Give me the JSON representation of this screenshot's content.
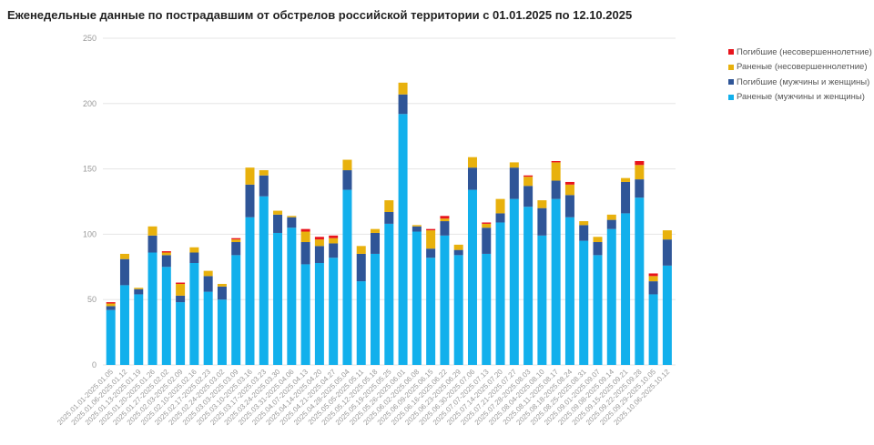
{
  "chart_data": {
    "type": "bar",
    "stacked": true,
    "title": "Еженедельные данные по пострадавшим от обстрелов российской территории с 01.01.2025 по 12.10.2025",
    "xlabel": "",
    "ylabel": "",
    "ylim": [
      0,
      250
    ],
    "yticks": [
      0,
      50,
      100,
      150,
      200,
      250
    ],
    "grid": true,
    "legend_position": "right",
    "categories": [
      "2025.01.01-2025.01.05",
      "2025.01.06-2025.01.12",
      "2025.01.13-2025.01.19",
      "2025.01.20-2025.01.26",
      "2025.01.27-2025.02.02",
      "2025.02.03-2025.02.09",
      "2025.02.10-2025.02.16",
      "2025.02.17-2025.02.23",
      "2025.02.24-2025.03.02",
      "2025.03.03-2025.03.09",
      "2025.03.10-2025.03.16",
      "2025.03.17-2025.03.23",
      "2025.03.24-2025.03.30",
      "2025.03.31-2025.04.06",
      "2025.04.07-2025.04.13",
      "2025.04.14-2025.04.20",
      "2025.04.21-2025.04.27",
      "2025.04.28-2025.05.04",
      "2025.05.05-2025.05.11",
      "2025.05.12-2025.05.18",
      "2025.05.19-2025.05.25",
      "2025.05.26-2025.06.01",
      "2025.06.02-2025.06.08",
      "2025.06.09-2025.06.15",
      "2025.06.16-2025.06.22",
      "2025.06.23-2025.06.29",
      "2025.06.30-2025.07.06",
      "2025.07.07-2025.07.13",
      "2025.07.14-2025.07.20",
      "2025.07.21-2025.07.27",
      "2025.07.28-2025.08.03",
      "2025.08.04-2025.08.10",
      "2025.08.11-2025.08.17",
      "2025.08.18-2025.08.24",
      "2025.08.25-2025.08.31",
      "2025.09.01-2025.09.07",
      "2025.09.08-2025.09.14",
      "2025.09.15-2025.09.21",
      "2025.09.22-2025.09.28",
      "2025.09.29-2025.10.05",
      "2025.10.06-2025.10.12"
    ],
    "series": [
      {
        "name": "Раненые (мужчины и женщины)",
        "color": "#12b0ec",
        "values": [
          42,
          61,
          54,
          86,
          75,
          48,
          78,
          56,
          50,
          84,
          113,
          129,
          101,
          105,
          77,
          78,
          82,
          134,
          64,
          85,
          108,
          192,
          102,
          82,
          99,
          84,
          134,
          85,
          109,
          127,
          121,
          99,
          127,
          113,
          95,
          84,
          104,
          116,
          128,
          54,
          76
        ]
      },
      {
        "name": "Погибшие (мужчины и женщины)",
        "color": "#2f5597",
        "values": [
          3,
          20,
          4,
          13,
          9,
          5,
          8,
          12,
          10,
          10,
          25,
          16,
          14,
          8,
          17,
          13,
          11,
          15,
          21,
          16,
          9,
          15,
          4,
          7,
          11,
          4,
          17,
          20,
          7,
          24,
          16,
          21,
          14,
          17,
          12,
          10,
          7,
          24,
          14,
          10,
          20
        ]
      },
      {
        "name": "Раненые (несовершеннолетние)",
        "color": "#e8b10d",
        "values": [
          2,
          4,
          1,
          7,
          2,
          9,
          4,
          4,
          2,
          2,
          13,
          4,
          3,
          1,
          8,
          5,
          4,
          8,
          6,
          3,
          9,
          9,
          1,
          14,
          2,
          4,
          8,
          3,
          11,
          4,
          7,
          6,
          14,
          8,
          3,
          4,
          4,
          3,
          11,
          4,
          7
        ]
      },
      {
        "name": "Погибшие (несовершеннолетние)",
        "color": "#e8141c",
        "values": [
          1,
          0,
          0,
          0,
          1,
          1,
          0,
          0,
          0,
          1,
          0,
          0,
          0,
          0,
          2,
          2,
          2,
          0,
          0,
          0,
          0,
          0,
          0,
          1,
          2,
          0,
          0,
          1,
          0,
          0,
          1,
          0,
          1,
          2,
          0,
          0,
          0,
          0,
          3,
          2,
          0
        ]
      }
    ]
  }
}
